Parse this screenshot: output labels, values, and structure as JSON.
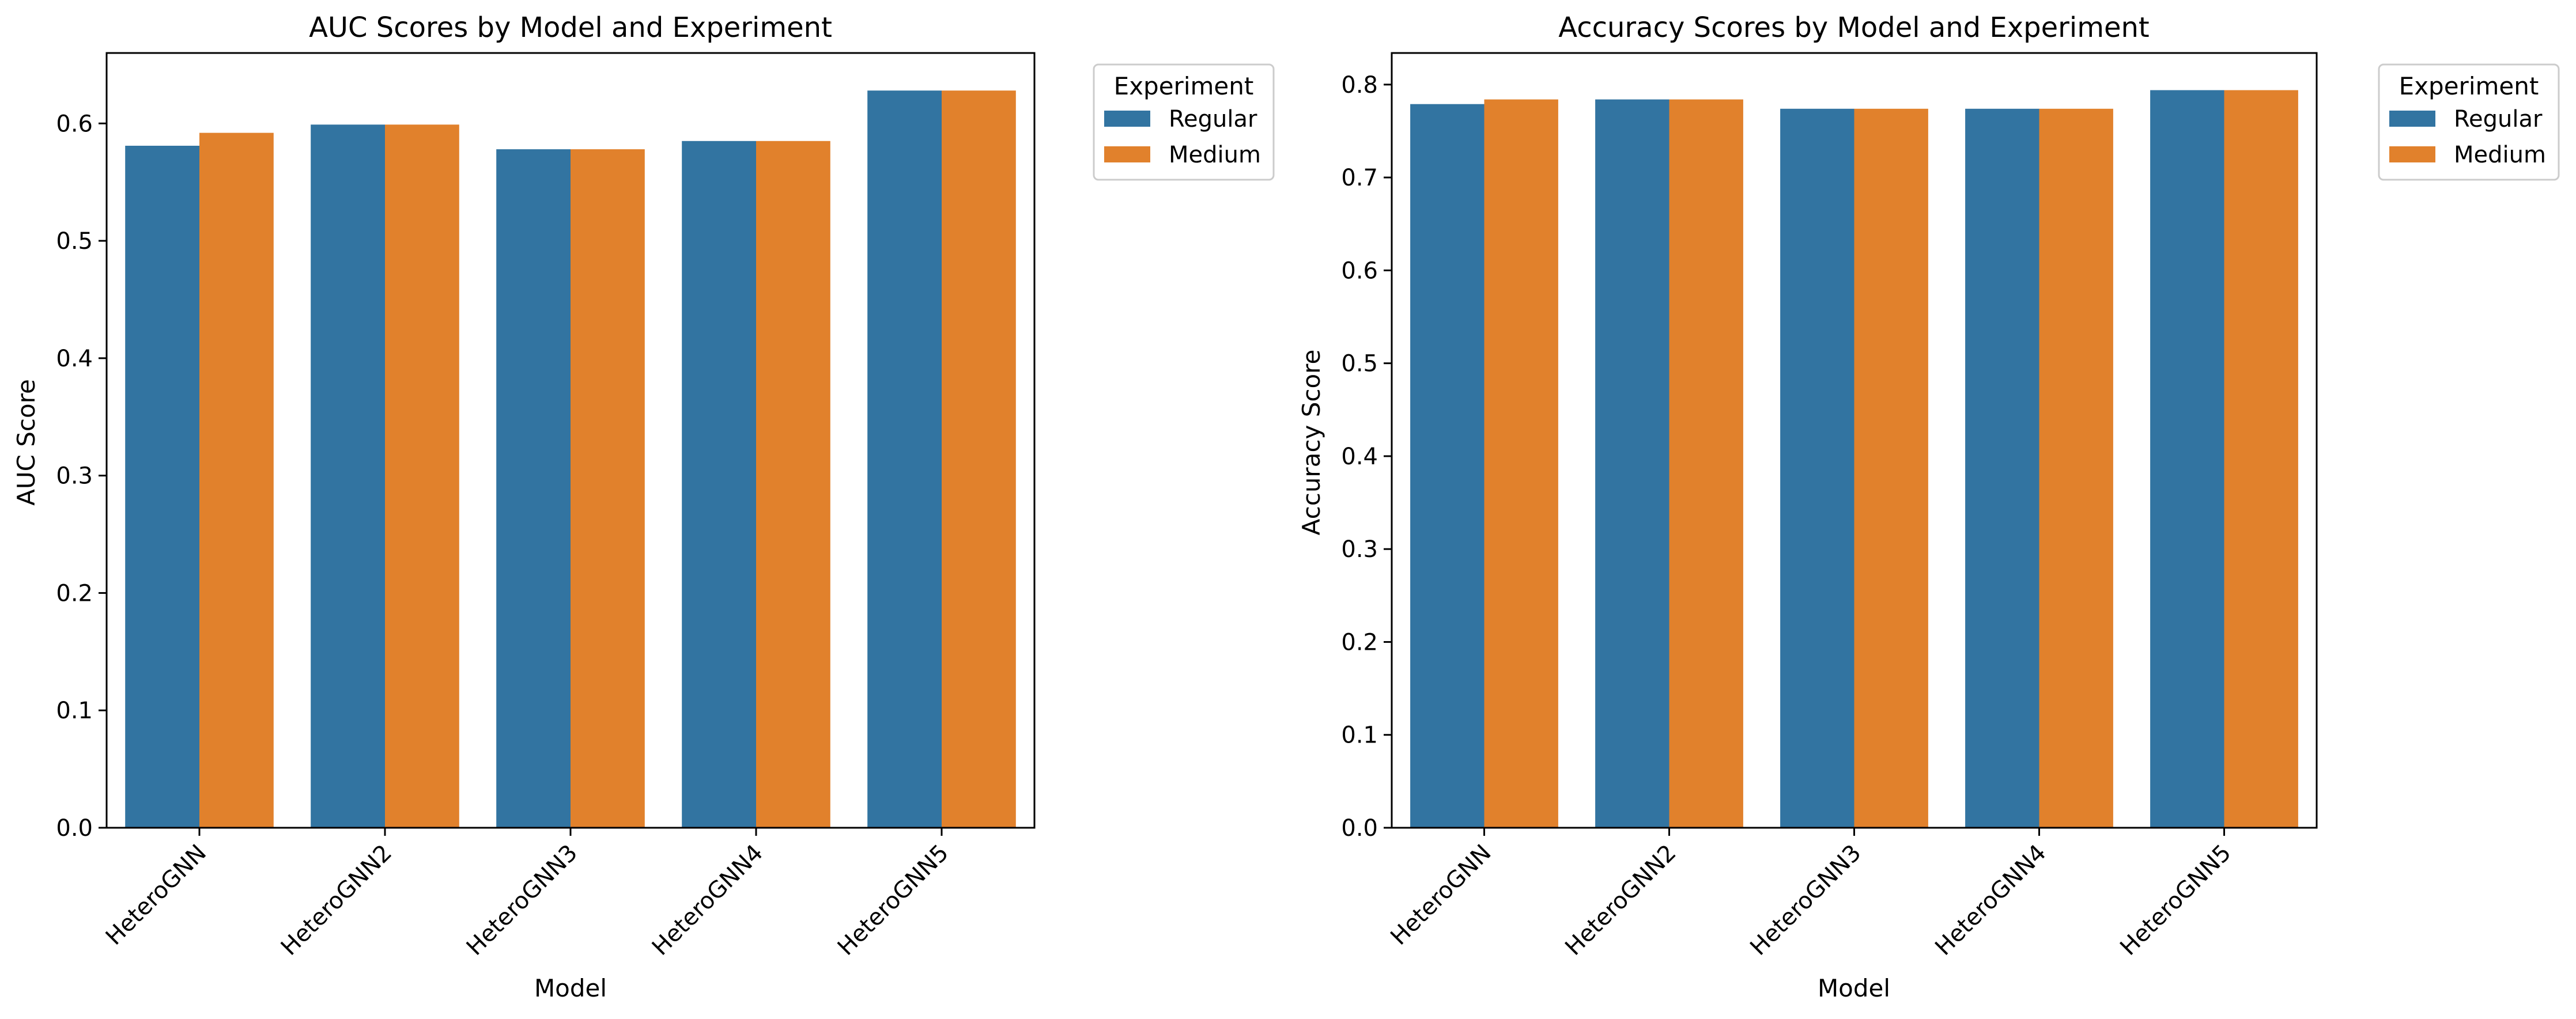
{
  "colors": {
    "regular": "#3274a1",
    "medium": "#e1812c",
    "axis": "#000000",
    "legend_border": "#cccccc"
  },
  "chart_data": [
    {
      "type": "bar",
      "title": "AUC Scores by Model and Experiment",
      "xlabel": "Model",
      "ylabel": "AUC Score",
      "categories": [
        "HeteroGNN",
        "HeteroGNN2",
        "HeteroGNN3",
        "HeteroGNN4",
        "HeteroGNN5"
      ],
      "series": [
        {
          "name": "Regular",
          "values": [
            0.581,
            0.599,
            0.578,
            0.585,
            0.628
          ]
        },
        {
          "name": "Medium",
          "values": [
            0.592,
            0.599,
            0.578,
            0.585,
            0.628
          ]
        }
      ],
      "ylim": [
        0,
        0.66
      ],
      "yticks": [
        "0.0",
        "0.1",
        "0.2",
        "0.3",
        "0.4",
        "0.5",
        "0.6"
      ],
      "legend": {
        "title": "Experiment",
        "position": "outside top-right"
      },
      "grid": false
    },
    {
      "type": "bar",
      "title": "Accuracy Scores by Model and Experiment",
      "xlabel": "Model",
      "ylabel": "Accuracy Score",
      "categories": [
        "HeteroGNN",
        "HeteroGNN2",
        "HeteroGNN3",
        "HeteroGNN4",
        "HeteroGNN5"
      ],
      "series": [
        {
          "name": "Regular",
          "values": [
            0.779,
            0.784,
            0.774,
            0.774,
            0.794
          ]
        },
        {
          "name": "Medium",
          "values": [
            0.784,
            0.784,
            0.774,
            0.774,
            0.794
          ]
        }
      ],
      "ylim": [
        0,
        0.834
      ],
      "yticks": [
        "0.0",
        "0.1",
        "0.2",
        "0.3",
        "0.4",
        "0.5",
        "0.6",
        "0.7",
        "0.8"
      ],
      "legend": {
        "title": "Experiment",
        "position": "outside top-right"
      },
      "grid": false
    }
  ]
}
